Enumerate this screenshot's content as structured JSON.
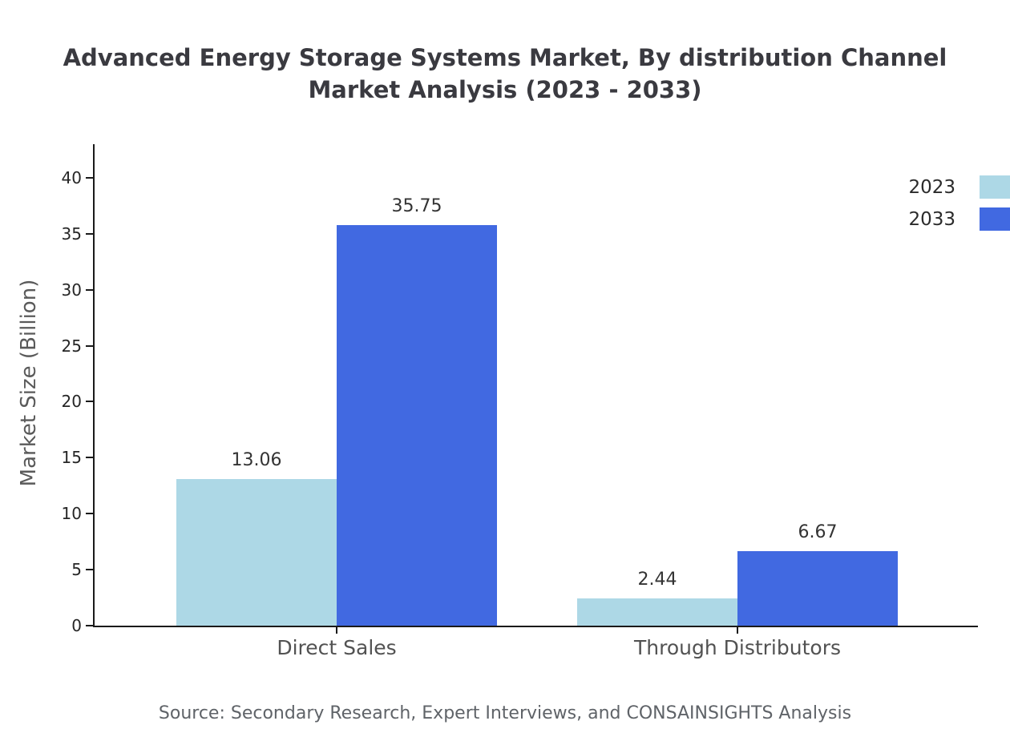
{
  "title_line1": "Advanced Energy Storage Systems Market, By distribution Channel",
  "title_line2": "Market Analysis (2023 - 2033)",
  "ylabel": "Market Size (Billion)",
  "source": "Source: Secondary Research, Expert Interviews, and CONSAINSIGHTS Analysis",
  "chart_data": {
    "type": "bar",
    "title": "Advanced Energy Storage Systems Market, By distribution Channel Market Analysis (2023 - 2033)",
    "categories": [
      "Direct Sales",
      "Through Distributors"
    ],
    "series": [
      {
        "name": "2023",
        "color": "#add8e6",
        "values": [
          13.06,
          2.44
        ]
      },
      {
        "name": "2033",
        "color": "#4169e1",
        "values": [
          35.75,
          6.67
        ]
      }
    ],
    "xlabel": "",
    "ylabel": "Market Size (Billion)",
    "ylim": [
      0,
      43
    ],
    "yticks": [
      0,
      5,
      10,
      15,
      20,
      25,
      30,
      35,
      40
    ],
    "grid": false,
    "legend_position": "upper right"
  }
}
